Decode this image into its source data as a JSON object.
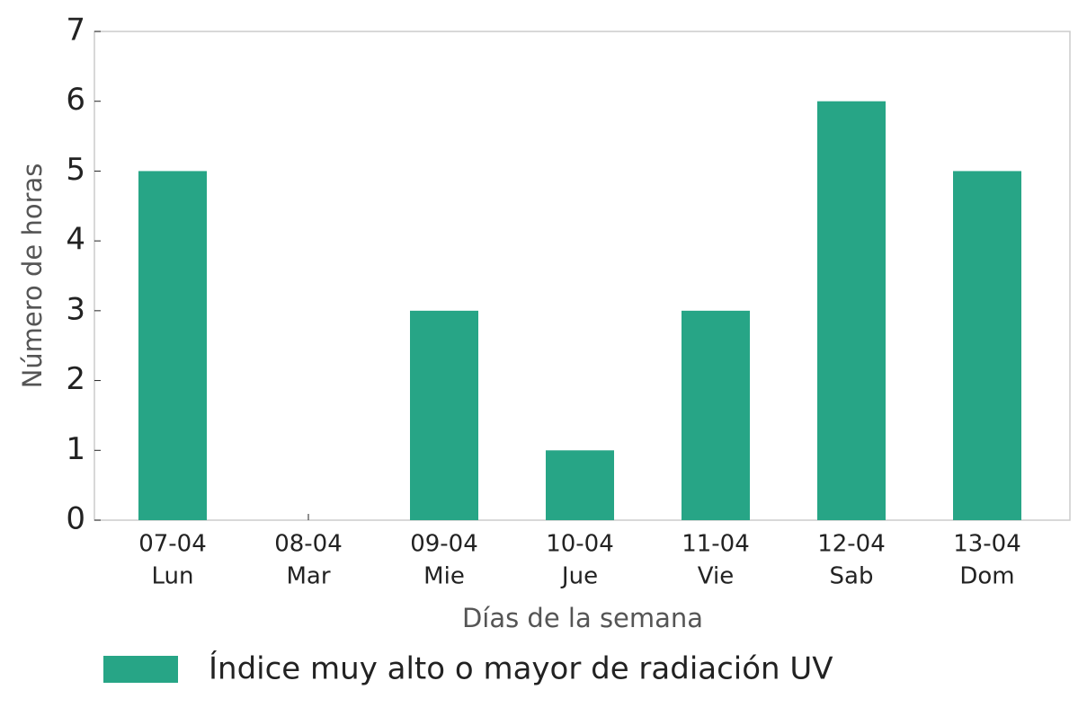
{
  "chart_data": {
    "type": "bar",
    "xlabel": "Días de la semana",
    "ylabel": "Número de horas",
    "categories": [
      [
        "07-04",
        "Lun"
      ],
      [
        "08-04",
        "Mar"
      ],
      [
        "09-04",
        "Mie"
      ],
      [
        "10-04",
        "Jue"
      ],
      [
        "11-04",
        "Vie"
      ],
      [
        "12-04",
        "Sab"
      ],
      [
        "13-04",
        "Dom"
      ]
    ],
    "series": [
      {
        "name": "Índice muy alto o mayor de radiación UV",
        "color": "#27a586",
        "values": [
          5,
          0,
          3,
          1,
          3,
          6,
          5
        ]
      }
    ],
    "ylim": [
      0,
      7
    ],
    "yticks": [
      0,
      1,
      2,
      3,
      4,
      5,
      6,
      7
    ],
    "grid": false,
    "legend": "bottom"
  }
}
